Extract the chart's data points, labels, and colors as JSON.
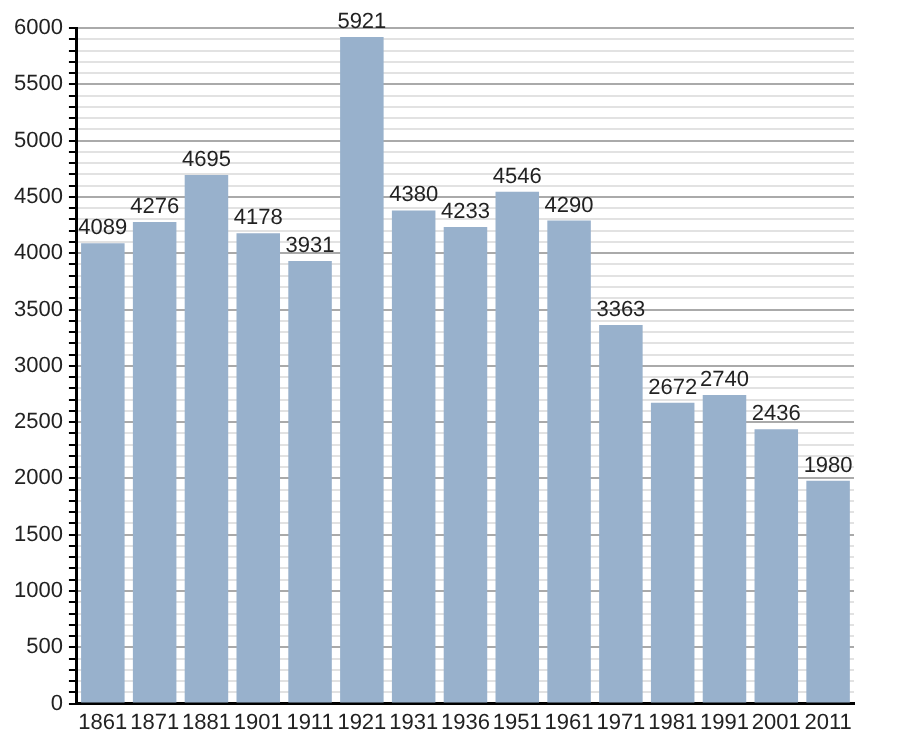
{
  "chart_data": {
    "type": "bar",
    "categories": [
      "1861",
      "1871",
      "1881",
      "1901",
      "1911",
      "1921",
      "1931",
      "1936",
      "1951",
      "1961",
      "1971",
      "1981",
      "1991",
      "2001",
      "2011"
    ],
    "values": [
      4089,
      4276,
      4695,
      4178,
      3931,
      5921,
      4380,
      4233,
      4546,
      4290,
      3363,
      2672,
      2740,
      2436,
      1980
    ],
    "color": "#98b1cc",
    "ylim": [
      0,
      6000
    ],
    "yticks": [
      0,
      {
        "value": 100,
        "label": null
      },
      {
        "value": 200,
        "label": null
      },
      {
        "value": 300,
        "label": null
      },
      {
        "value": 400,
        "label": null
      },
      500,
      {
        "value": 600,
        "label": null
      },
      {
        "value": 700,
        "label": null
      },
      {
        "value": 800,
        "label": null
      },
      {
        "value": 900,
        "label": null
      },
      1000,
      {
        "value": 1100,
        "label": null
      },
      {
        "value": 1200,
        "label": null
      },
      {
        "value": 1300,
        "label": null
      },
      {
        "value": 1400,
        "label": null
      },
      1500,
      {
        "value": 1600,
        "label": null
      },
      {
        "value": 1700,
        "label": null
      },
      {
        "value": 1800,
        "label": null
      },
      {
        "value": 1900,
        "label": null
      },
      2000,
      {
        "value": 2100,
        "label": null
      },
      {
        "value": 2200,
        "label": null
      },
      {
        "value": 2300,
        "label": null
      },
      {
        "value": 2400,
        "label": null
      },
      2500,
      {
        "value": 2600,
        "label": null
      },
      {
        "value": 2700,
        "label": null
      },
      {
        "value": 2800,
        "label": null
      },
      {
        "value": 2900,
        "label": null
      },
      3000,
      {
        "value": 3100,
        "label": null
      },
      {
        "value": 3200,
        "label": null
      },
      {
        "value": 3300,
        "label": null
      },
      {
        "value": 3400,
        "label": null
      },
      3500,
      {
        "value": 3600,
        "label": null
      },
      {
        "value": 3700,
        "label": null
      },
      {
        "value": 3800,
        "label": null
      },
      {
        "value": 3900,
        "label": null
      },
      4000,
      {
        "value": 4100,
        "label": null
      },
      {
        "value": 4200,
        "label": null
      },
      {
        "value": 4300,
        "label": null
      },
      {
        "value": 4400,
        "label": null
      },
      4500,
      {
        "value": 4600,
        "label": null
      },
      {
        "value": 4700,
        "label": null
      },
      {
        "value": 4800,
        "label": null
      },
      {
        "value": 4900,
        "label": null
      },
      5000,
      {
        "value": 5100,
        "label": null
      },
      {
        "value": 5200,
        "label": null
      },
      {
        "value": 5300,
        "label": null
      },
      {
        "value": 5400,
        "label": null
      },
      5500,
      {
        "value": 5600,
        "label": null
      },
      {
        "value": 5700,
        "label": null
      },
      {
        "value": 5800,
        "label": null
      },
      {
        "value": 5900,
        "label": null
      },
      6000
    ],
    "grid": true,
    "legend": false,
    "data_labels": true
  }
}
